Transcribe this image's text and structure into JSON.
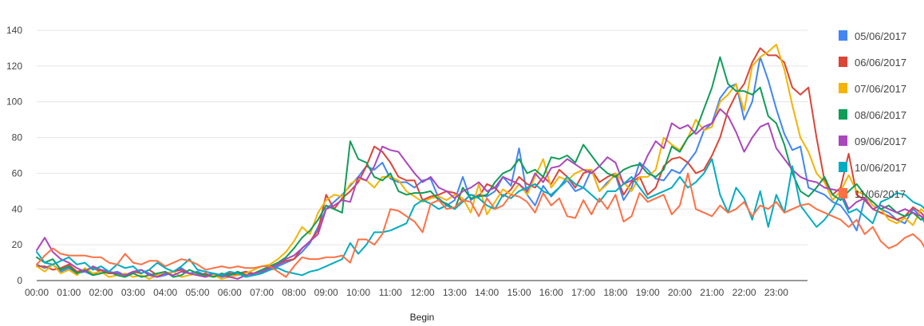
{
  "chart_data": {
    "type": "line",
    "xlabel": "Begin",
    "ylabel": "",
    "ylim": [
      0,
      140
    ],
    "y_ticks": [
      0,
      20,
      40,
      60,
      80,
      100,
      120,
      140
    ],
    "x_tick_labels": [
      "00:00",
      "01:00",
      "02:00",
      "03:00",
      "04:00",
      "05:00",
      "06:00",
      "07:00",
      "08:00",
      "09:00",
      "10:00",
      "11:00",
      "12:00",
      "13:00",
      "14:00",
      "15:00",
      "16:00",
      "17:00",
      "18:00",
      "19:00",
      "20:00",
      "21:00",
      "22:00",
      "23:00"
    ],
    "x_interval_minutes": 15,
    "grid": true,
    "legend_position": "right",
    "series": [
      {
        "name": "05/06/2017",
        "color": "#4285F4",
        "values": [
          9,
          7,
          9,
          5,
          7,
          4,
          5,
          3,
          6,
          4,
          5,
          3,
          4,
          6,
          4,
          2,
          3,
          5,
          7,
          4,
          5,
          3,
          4,
          2,
          3,
          4,
          5,
          3,
          4,
          6,
          8,
          10,
          12,
          16,
          21,
          30,
          40,
          44,
          48,
          53,
          58,
          64,
          62,
          66,
          57,
          55,
          55,
          52,
          56,
          57,
          46,
          42,
          45,
          58,
          45,
          48,
          47,
          50,
          58,
          53,
          74,
          48,
          42,
          53,
          47,
          52,
          56,
          50,
          52,
          62,
          50,
          55,
          59,
          45,
          52,
          66,
          62,
          57,
          56,
          62,
          60,
          66,
          72,
          84,
          88,
          102,
          108,
          110,
          90,
          100,
          125,
          112,
          96,
          82,
          73,
          75,
          52,
          50,
          48,
          44,
          42,
          36,
          28,
          46,
          44,
          40,
          38,
          34,
          32,
          40,
          36,
          28,
          26,
          22,
          24,
          28,
          20,
          16,
          14,
          24,
          20,
          8,
          16,
          12
        ]
      },
      {
        "name": "06/06/2017",
        "color": "#DB4437",
        "values": [
          8,
          8,
          6,
          7,
          9,
          5,
          6,
          7,
          5,
          4,
          4,
          3,
          5,
          4,
          6,
          3,
          4,
          5,
          6,
          4,
          3,
          4,
          2,
          3,
          4,
          3,
          5,
          4,
          5,
          7,
          9,
          11,
          12,
          18,
          22,
          28,
          48,
          40,
          46,
          50,
          55,
          64,
          75,
          72,
          66,
          58,
          56,
          56,
          45,
          47,
          48,
          50,
          49,
          44,
          48,
          47,
          54,
          52,
          47,
          51,
          58,
          54,
          52,
          58,
          54,
          62,
          58,
          52,
          60,
          62,
          55,
          58,
          60,
          48,
          55,
          58,
          48,
          52,
          64,
          68,
          69,
          66,
          60,
          62,
          70,
          80,
          95,
          104,
          110,
          122,
          130,
          126,
          126,
          122,
          108,
          104,
          108,
          80,
          56,
          48,
          52,
          71,
          48,
          45,
          40,
          38,
          36,
          34,
          36,
          41,
          38,
          33,
          30,
          28,
          30,
          25,
          24,
          22,
          20,
          18,
          18,
          16,
          14,
          12,
          10,
          11
        ]
      },
      {
        "name": "07/06/2017",
        "color": "#F4B400",
        "values": [
          8,
          5,
          9,
          4,
          6,
          3,
          7,
          4,
          5,
          2,
          3,
          4,
          2,
          3,
          1,
          3,
          4,
          5,
          2,
          3,
          4,
          2,
          3,
          1,
          2,
          3,
          4,
          6,
          8,
          9,
          12,
          16,
          22,
          30,
          26,
          38,
          45,
          48,
          47,
          54,
          57,
          56,
          52,
          58,
          58,
          56,
          50,
          47,
          44,
          46,
          47,
          45,
          48,
          46,
          38,
          54,
          37,
          44,
          51,
          48,
          54,
          48,
          58,
          68,
          52,
          58,
          56,
          60,
          62,
          62,
          50,
          54,
          60,
          55,
          50,
          58,
          58,
          62,
          80,
          76,
          73,
          80,
          90,
          84,
          86,
          100,
          104,
          110,
          95,
          120,
          125,
          128,
          132,
          118,
          98,
          80,
          72,
          60,
          55,
          45,
          50,
          59,
          50,
          48,
          42,
          40,
          34,
          32,
          35,
          31,
          40,
          36,
          30,
          26,
          31,
          24,
          22,
          20,
          28,
          18,
          18,
          14,
          10,
          12
        ]
      },
      {
        "name": "08/06/2017",
        "color": "#0F9D58",
        "values": [
          13,
          10,
          12,
          6,
          8,
          4,
          6,
          3,
          4,
          5,
          3,
          2,
          4,
          2,
          3,
          4,
          5,
          2,
          3,
          6,
          4,
          3,
          2,
          4,
          3,
          5,
          3,
          4,
          6,
          8,
          10,
          13,
          18,
          24,
          28,
          34,
          42,
          40,
          38,
          78,
          68,
          66,
          58,
          56,
          60,
          50,
          48,
          49,
          49,
          50,
          45,
          43,
          40,
          52,
          46,
          47,
          48,
          55,
          60,
          62,
          68,
          60,
          62,
          58,
          69,
          68,
          70,
          66,
          76,
          70,
          64,
          60,
          58,
          62,
          64,
          65,
          60,
          58,
          62,
          75,
          72,
          80,
          84,
          96,
          108,
          125,
          110,
          106,
          106,
          104,
          108,
          92,
          88,
          76,
          60,
          50,
          47,
          52,
          58,
          48,
          45,
          50,
          54,
          48,
          44,
          40,
          42,
          38,
          36,
          38,
          34,
          36,
          30,
          28,
          24,
          30,
          34,
          35,
          26,
          20,
          18,
          17,
          16
        ]
      },
      {
        "name": "09/06/2017",
        "color": "#AB47BC",
        "values": [
          17,
          24,
          16,
          12,
          10,
          7,
          5,
          8,
          6,
          5,
          4,
          3,
          5,
          6,
          3,
          2,
          4,
          3,
          5,
          4,
          3,
          2,
          4,
          3,
          2,
          1,
          3,
          4,
          5,
          7,
          9,
          12,
          14,
          18,
          22,
          26,
          40,
          42,
          45,
          44,
          58,
          56,
          64,
          75,
          73,
          72,
          66,
          60,
          55,
          58,
          52,
          50,
          46,
          50,
          52,
          55,
          50,
          52,
          58,
          56,
          54,
          50,
          60,
          55,
          63,
          64,
          68,
          65,
          62,
          60,
          64,
          69,
          66,
          54,
          56,
          60,
          70,
          78,
          74,
          88,
          85,
          87,
          82,
          86,
          88,
          96,
          92,
          83,
          72,
          80,
          86,
          88,
          74,
          68,
          62,
          58,
          56,
          55,
          52,
          51,
          50,
          40,
          44,
          46,
          40,
          42,
          40,
          38,
          40,
          38,
          36,
          34,
          28,
          30,
          26,
          24,
          22,
          20,
          22,
          18,
          16,
          14,
          12
        ]
      },
      {
        "name": "10/06/2017",
        "color": "#00ACC1",
        "values": [
          16,
          10,
          9,
          11,
          13,
          9,
          10,
          6,
          8,
          5,
          9,
          7,
          8,
          4,
          6,
          10,
          7,
          5,
          8,
          12,
          6,
          5,
          4,
          3,
          5,
          4,
          2,
          3,
          4,
          6,
          7,
          5,
          4,
          3,
          5,
          6,
          8,
          10,
          12,
          21,
          15,
          20,
          27,
          27,
          28,
          30,
          32,
          42,
          45,
          43,
          40,
          42,
          40,
          44,
          48,
          46,
          42,
          40,
          48,
          46,
          50,
          52,
          54,
          50,
          48,
          52,
          58,
          54,
          52,
          48,
          44,
          50,
          50,
          54,
          58,
          52,
          46,
          48,
          50,
          52,
          58,
          52,
          55,
          60,
          68,
          48,
          38,
          52,
          46,
          34,
          50,
          30,
          48,
          38,
          64,
          42,
          36,
          30,
          34,
          40,
          48,
          38,
          40,
          36,
          32,
          44,
          46,
          49,
          48,
          44,
          42,
          38,
          32,
          24,
          20,
          22,
          24,
          26,
          28,
          18,
          14,
          26,
          22
        ]
      },
      {
        "name": "11/06/2017",
        "color": "#FF7043",
        "values": [
          9,
          14,
          18,
          15,
          14,
          14,
          14,
          13,
          13,
          10,
          9,
          15,
          10,
          9,
          11,
          11,
          8,
          10,
          12,
          11,
          9,
          6,
          7,
          8,
          7,
          8,
          7,
          7,
          8,
          8,
          5,
          2,
          8,
          13,
          12,
          12,
          13,
          13,
          14,
          10,
          23,
          23,
          20,
          26,
          40,
          39,
          36,
          33,
          27,
          43,
          45,
          40,
          41,
          45,
          44,
          36,
          46,
          40,
          42,
          48,
          47,
          44,
          38,
          49,
          42,
          46,
          36,
          35,
          45,
          37,
          46,
          40,
          48,
          33,
          36,
          49,
          44,
          46,
          48,
          37,
          42,
          60,
          40,
          38,
          36,
          42,
          38,
          40,
          44,
          36,
          42,
          40,
          44,
          38,
          40,
          42,
          43,
          40,
          38,
          36,
          34,
          30,
          34,
          26,
          30,
          22,
          18,
          20,
          24,
          26,
          22,
          14,
          18,
          17,
          20,
          16,
          12,
          12,
          10,
          11
        ]
      }
    ]
  }
}
